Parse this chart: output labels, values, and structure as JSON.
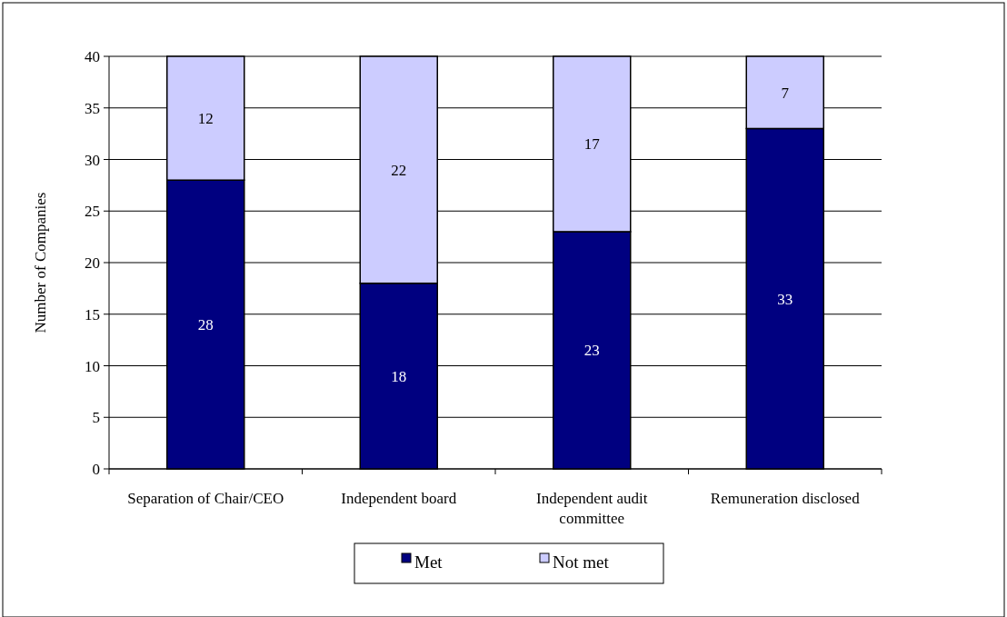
{
  "chart_data": {
    "type": "bar",
    "stacked": true,
    "ylabel": "Number of Companies",
    "categories": [
      "Separation of Chair/CEO",
      "Independent board",
      "Independent audit committee",
      "Remuneration disclosed"
    ],
    "series": [
      {
        "name": "Met",
        "color": "#000080",
        "values": [
          28,
          18,
          23,
          33
        ]
      },
      {
        "name": "Not met",
        "color": "#ccccff",
        "values": [
          12,
          22,
          17,
          7
        ]
      }
    ],
    "ylim": [
      0,
      40
    ],
    "yticks": [
      0,
      5,
      10,
      15,
      20,
      25,
      30,
      35,
      40
    ],
    "grid": "y",
    "legend": "bottom",
    "data_labels": true
  }
}
